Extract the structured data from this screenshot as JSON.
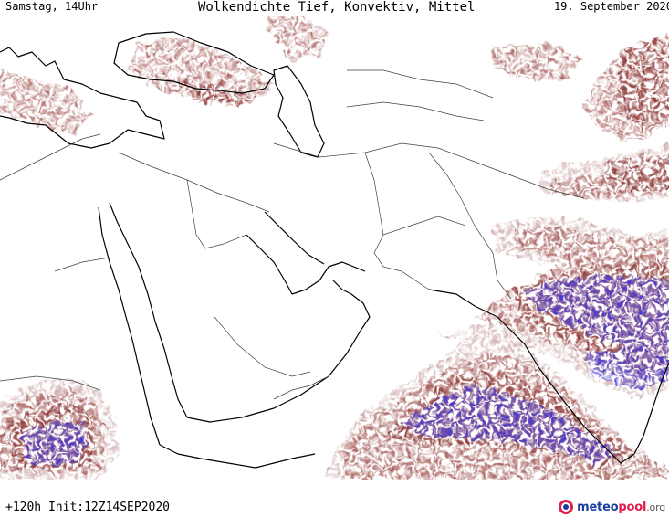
{
  "header": {
    "left": "Samstag, 14Uhr",
    "center": "Wolkendichte   Tief, Konvektiv, Mittel",
    "right": "19. September 2020"
  },
  "footer": {
    "run_info": "+120h  Init:12Z14SEP2020"
  },
  "logo": {
    "part1": "meteo",
    "part2": "pool",
    "part3": ".org",
    "icon": "meteopool-logo-icon"
  },
  "colors": {
    "cloud_low": "#c49a98",
    "cloud_mid": "#a8605c",
    "cloud_high": "#8e3b3a",
    "convective": "#3a3af0",
    "coastline": "#000000",
    "border": "#404040"
  }
}
